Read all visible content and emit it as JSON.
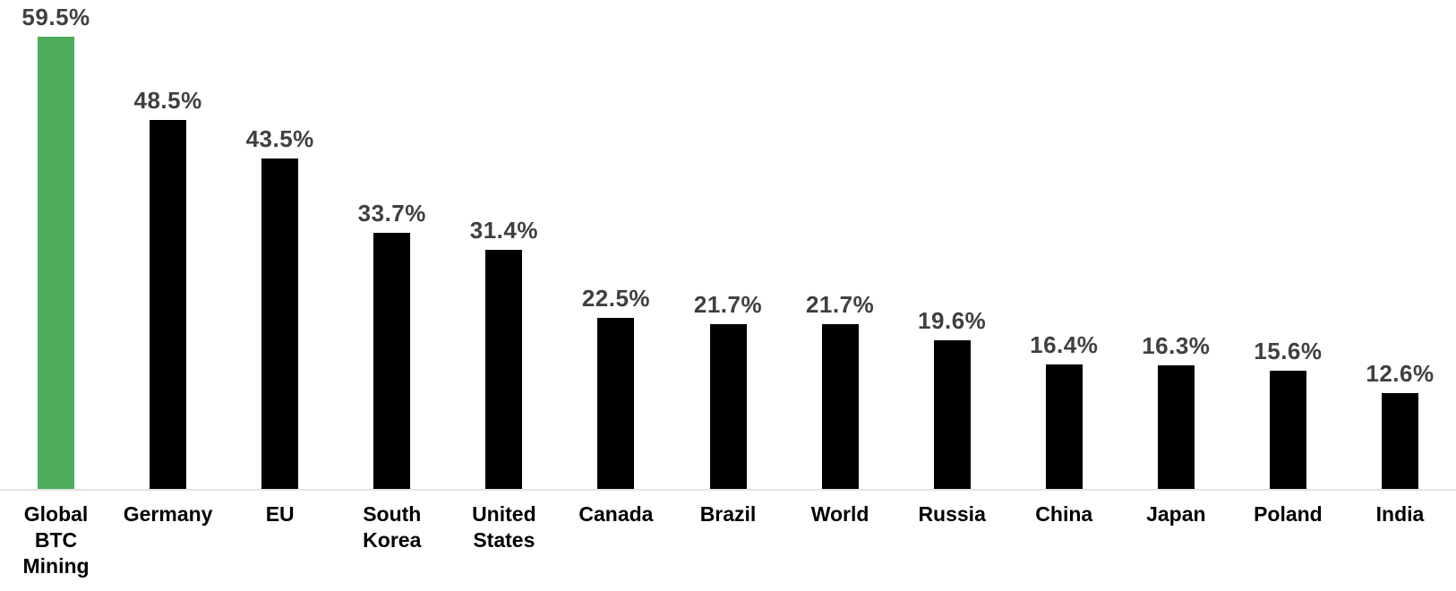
{
  "chart_data": {
    "type": "bar",
    "title": "",
    "xlabel": "",
    "ylabel": "",
    "categories": [
      "Global\nBTC\nMining",
      "Germany",
      "EU",
      "South\nKorea",
      "United\nStates",
      "Canada",
      "Brazil",
      "World",
      "Russia",
      "China",
      "Japan",
      "Poland",
      "India"
    ],
    "values": [
      59.5,
      48.5,
      43.5,
      33.7,
      31.4,
      22.5,
      21.7,
      21.7,
      19.6,
      16.4,
      16.3,
      15.6,
      12.6
    ],
    "value_labels": [
      "59.5%",
      "48.5%",
      "43.5%",
      "33.7%",
      "31.4%",
      "22.5%",
      "21.7%",
      "21.7%",
      "19.6%",
      "16.4%",
      "16.3%",
      "15.6%",
      "12.6%"
    ],
    "bar_colors": [
      "#4dac5c",
      "#000000",
      "#000000",
      "#000000",
      "#000000",
      "#000000",
      "#000000",
      "#000000",
      "#000000",
      "#000000",
      "#000000",
      "#000000",
      "#000000"
    ],
    "highlight_color": "#4dac5c",
    "default_bar_color": "#000000",
    "value_label_color": "#404040",
    "category_label_color": "#000000",
    "axis_line_color": "#e4e4e4",
    "ylim": [
      0,
      62
    ],
    "grid": false,
    "legend": false,
    "orientation": "vertical",
    "data_labels": "above-bars"
  }
}
